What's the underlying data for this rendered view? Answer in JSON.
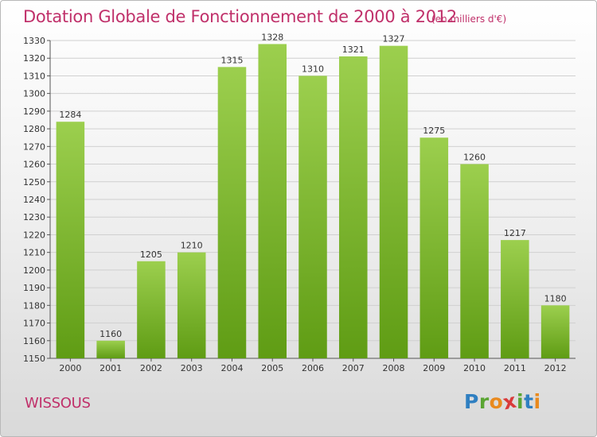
{
  "title": "Dotation Globale de Fonctionnement de 2000 à 2012",
  "unit_note": "(en milliers d'€)",
  "commune": "WISSOUS",
  "logo": {
    "text": "Proxiti",
    "colors": [
      "#2f7fc1",
      "#5aa533",
      "#e98a1e",
      "#d93a3a",
      "#5aa533",
      "#2f7fc1",
      "#e98a1e"
    ]
  },
  "colors": {
    "title": "#c0306a",
    "bar_light": "#9ccf4e",
    "bar_dark": "#5f9c14",
    "grid": "#d0d0d0"
  },
  "chart_data": {
    "type": "bar",
    "categories": [
      "2000",
      "2001",
      "2002",
      "2003",
      "2004",
      "2005",
      "2006",
      "2007",
      "2008",
      "2009",
      "2010",
      "2011",
      "2012"
    ],
    "values": [
      1284,
      1160,
      1205,
      1210,
      1315,
      1328,
      1310,
      1321,
      1327,
      1275,
      1260,
      1217,
      1180
    ],
    "data_labels": [
      "1284",
      "1160",
      "1205",
      "1210",
      "1315",
      "1328",
      "1310",
      "1321",
      "1327",
      "1275",
      "1260",
      "1217",
      "1180"
    ],
    "title": "Dotation Globale de Fonctionnement de 2000 à 2012",
    "xlabel": "",
    "ylabel": "",
    "ylim": [
      1150,
      1330
    ],
    "yticks": [
      1150,
      1160,
      1170,
      1180,
      1190,
      1200,
      1210,
      1220,
      1230,
      1240,
      1250,
      1260,
      1270,
      1280,
      1290,
      1300,
      1310,
      1320,
      1330
    ],
    "grid": true,
    "legend": "none"
  }
}
